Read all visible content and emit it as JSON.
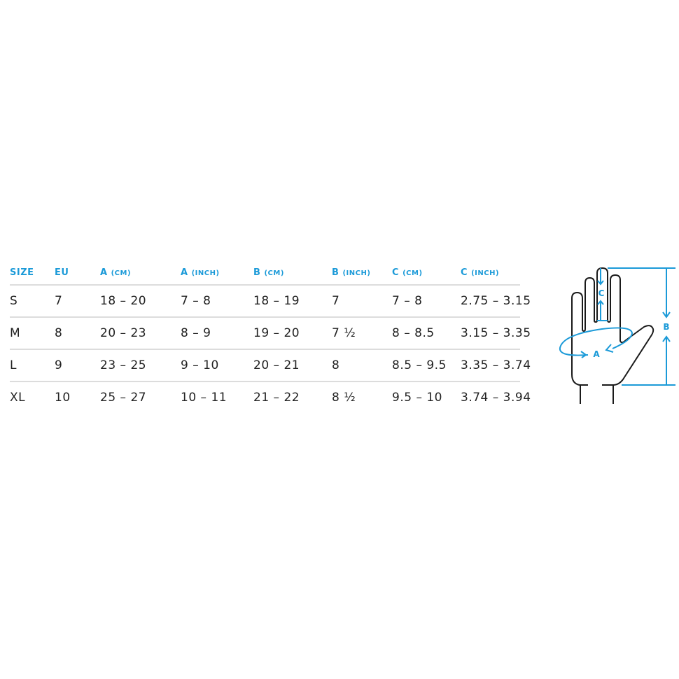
{
  "table": {
    "headers": [
      {
        "main": "SIZE",
        "unit": ""
      },
      {
        "main": "EU",
        "unit": ""
      },
      {
        "main": "A",
        "unit": "(CM)"
      },
      {
        "main": "A",
        "unit": "(INCH)"
      },
      {
        "main": "B",
        "unit": "(CM)"
      },
      {
        "main": "B",
        "unit": "(INCH)"
      },
      {
        "main": "C",
        "unit": "(CM)"
      },
      {
        "main": "C",
        "unit": "(INCH)"
      }
    ],
    "rows": [
      [
        "S",
        "7",
        "18 – 20",
        "7 – 8",
        "18 – 19",
        "7",
        "7 – 8",
        "2.75  – 3.15"
      ],
      [
        "M",
        "8",
        "20 – 23",
        "8 – 9",
        "19 – 20",
        "7 ½",
        "8 – 8.5",
        "3.15  – 3.35"
      ],
      [
        "L",
        "9",
        "23 – 25",
        "9 – 10",
        "20 – 21",
        "8",
        "8.5 – 9.5",
        "3.35  – 3.74"
      ],
      [
        "XL",
        "10",
        "25 – 27",
        "10 – 11",
        "21 – 22",
        "8 ½",
        "9.5 – 10",
        "3.74  – 3.94"
      ]
    ]
  },
  "diagram": {
    "labels": {
      "a": "A",
      "b": "B",
      "c": "C"
    },
    "accent_color": "#1b9ad8",
    "outline_color": "#1a1a1a"
  }
}
